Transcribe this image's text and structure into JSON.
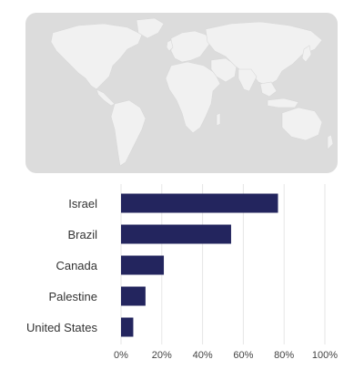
{
  "map": {
    "land_color": "#f1f1f1",
    "background_color": "#dcdcdc",
    "border_color": "#d8d8d8"
  },
  "chart_data": {
    "type": "bar",
    "orientation": "horizontal",
    "categories": [
      "Israel",
      "Brazil",
      "Canada",
      "Palestine",
      "United States"
    ],
    "values": [
      77,
      54,
      21,
      12,
      6
    ],
    "unit": "%",
    "xlim": [
      0,
      100
    ],
    "xticks": [
      "0%",
      "20%",
      "40%",
      "60%",
      "80%",
      "100%"
    ],
    "grid": true,
    "bar_color": "#23255e",
    "grid_color": "#e6e6e6",
    "title": "",
    "xlabel": "",
    "ylabel": ""
  }
}
